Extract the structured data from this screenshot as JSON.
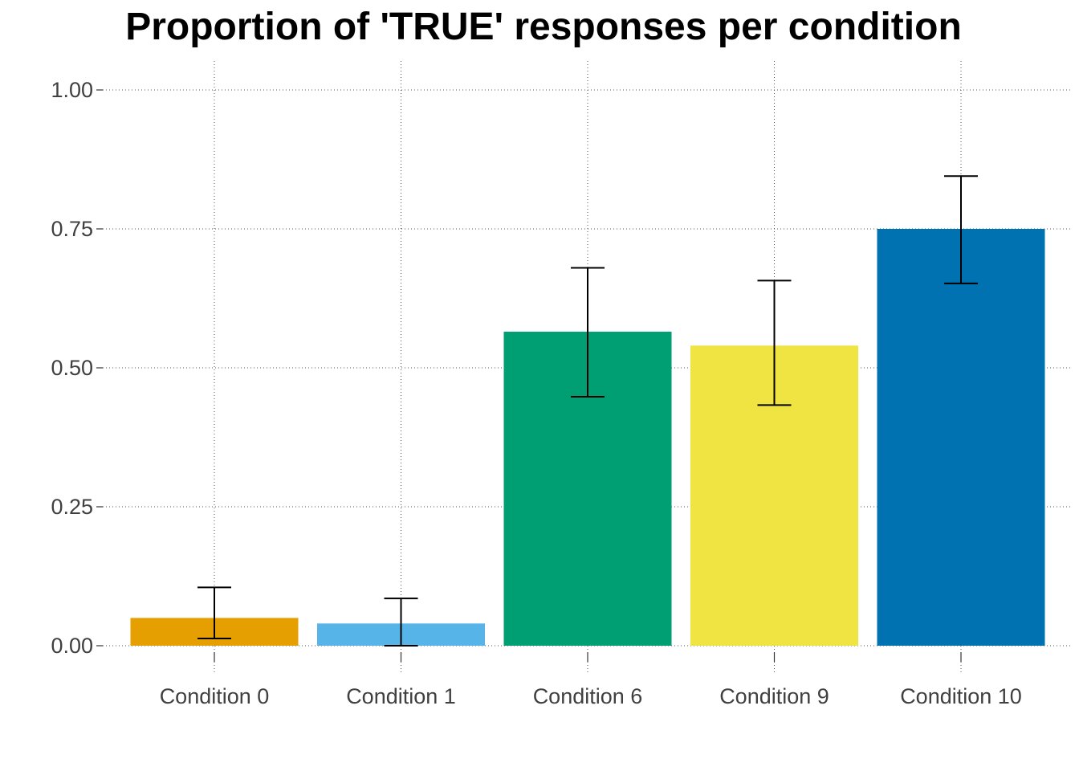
{
  "chart_data": {
    "type": "bar",
    "title": "Proportion of 'TRUE' responses per condition",
    "xlabel": "",
    "ylabel": "",
    "categories": [
      "Condition 0",
      "Condition 1",
      "Condition 6",
      "Condition 9",
      "Condition 10"
    ],
    "values": [
      0.05,
      0.04,
      0.565,
      0.54,
      0.75
    ],
    "error_bars": [
      {
        "low": 0.013,
        "high": 0.105
      },
      {
        "low": 0.0,
        "high": 0.085
      },
      {
        "low": 0.448,
        "high": 0.68
      },
      {
        "low": 0.433,
        "high": 0.657
      },
      {
        "low": 0.652,
        "high": 0.845
      }
    ],
    "colors": [
      "#E69F00",
      "#56B4E9",
      "#009E73",
      "#F0E442",
      "#0072B2"
    ],
    "ylim": [
      0,
      1.0
    ],
    "yticks": [
      0,
      0.25,
      0.5,
      0.75,
      1.0
    ],
    "ytick_labels": [
      "0.00",
      "0.25",
      "0.50",
      "0.75",
      "1.00"
    ],
    "grid": "dotted",
    "legend": "none"
  }
}
